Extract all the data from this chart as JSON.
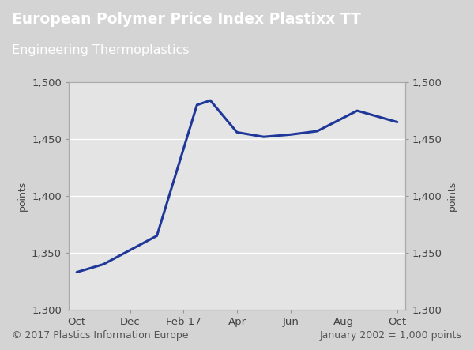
{
  "title_line1": "European Polymer Price Index Plastixx TT",
  "title_line2": "Engineering Thermoplastics",
  "title_bg_color": "#1e3799",
  "title_text_color": "#ffffff",
  "plot_bg_color": "#e4e4e4",
  "figure_bg_color": "#d4d4d4",
  "line_color": "#1e3799",
  "line_width": 2.2,
  "x_labels": [
    "Oct",
    "Dec",
    "Feb 17",
    "Apr",
    "Jun",
    "Aug",
    "Oct"
  ],
  "x_tick_pos": [
    0,
    2,
    4,
    6,
    8,
    10,
    12
  ],
  "y_data": [
    1333,
    1340,
    1365,
    1480,
    1484,
    1456,
    1452,
    1454,
    1457,
    1475,
    1465
  ],
  "x_data": [
    0,
    1,
    3,
    4.5,
    5,
    6,
    7,
    8,
    9,
    10.5,
    12
  ],
  "ylim": [
    1300,
    1500
  ],
  "yticks": [
    1300,
    1350,
    1400,
    1450,
    1500
  ],
  "ylabel": "points",
  "footer_left": "© 2017 Plastics Information Europe",
  "footer_right": "January 2002 = 1,000 points",
  "footer_color": "#555555",
  "footer_fontsize": 9,
  "title_fontsize1": 13.5,
  "title_fontsize2": 11.5,
  "tick_labelsize": 9.5,
  "ylabel_fontsize": 9
}
